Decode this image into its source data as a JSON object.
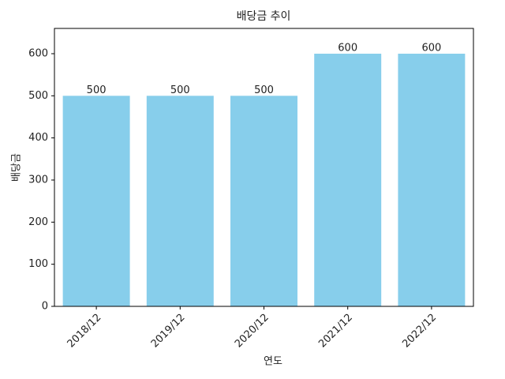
{
  "chart_data": {
    "type": "bar",
    "title": "배당금 추이",
    "x_label": "연도",
    "y_label": "배당금",
    "categories": [
      "2018/12",
      "2019/12",
      "2020/12",
      "2021/12",
      "2022/12"
    ],
    "values": [
      500,
      500,
      500,
      600,
      600
    ],
    "color": "#87ceeb",
    "ylim": [
      0,
      660
    ],
    "yticks": [
      0,
      100,
      200,
      300,
      400,
      500,
      600
    ],
    "value_labels_shown": true
  }
}
